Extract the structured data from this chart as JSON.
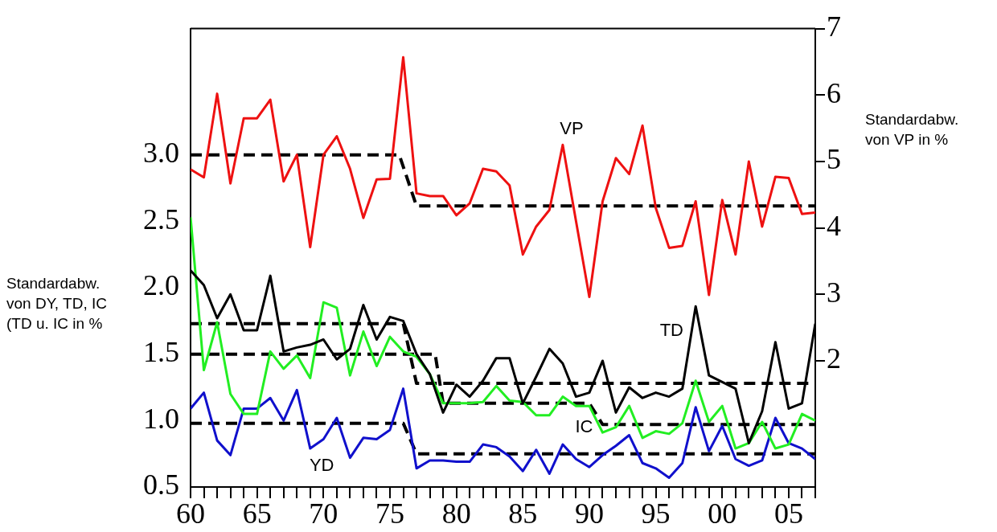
{
  "chart_data": {
    "type": "line",
    "ylabel": "Standardabw. von DY, TD, IC (TD u. IC in %",
    "y2label": "Standardabw. von VP in %",
    "x": [
      1960,
      1961,
      1962,
      1963,
      1964,
      1965,
      1966,
      1967,
      1968,
      1969,
      1970,
      1971,
      1972,
      1973,
      1974,
      1975,
      1976,
      1977,
      1978,
      1979,
      1980,
      1981,
      1982,
      1983,
      1984,
      1985,
      1986,
      1987,
      1988,
      1989,
      1990,
      1991,
      1992,
      1993,
      1994,
      1995,
      1996,
      1997,
      1998,
      1999,
      2000,
      2001,
      2002,
      2003,
      2004,
      2005,
      2006,
      2007
    ],
    "series": [
      {
        "name": "VP",
        "color": "#ee1111",
        "axis": "y2",
        "values": [
          4.88,
          4.76,
          6.02,
          4.67,
          5.65,
          5.65,
          5.93,
          4.7,
          5.1,
          3.71,
          5.1,
          5.38,
          4.89,
          4.15,
          4.73,
          4.74,
          6.57,
          4.52,
          4.48,
          4.48,
          4.19,
          4.37,
          4.89,
          4.85,
          4.64,
          3.6,
          4.02,
          4.27,
          5.25,
          4.1,
          2.96,
          4.4,
          5.05,
          4.81,
          5.54,
          4.3,
          3.7,
          3.73,
          4.4,
          2.99,
          4.42,
          3.6,
          5.0,
          4.02,
          4.77,
          4.75,
          4.21,
          4.23
        ]
      },
      {
        "name": "TD",
        "color": "#000000",
        "values": [
          2.13,
          2.02,
          1.77,
          1.95,
          1.68,
          1.68,
          2.09,
          1.52,
          1.55,
          1.57,
          1.61,
          1.46,
          1.54,
          1.87,
          1.61,
          1.78,
          1.75,
          1.5,
          1.35,
          1.06,
          1.27,
          1.18,
          1.3,
          1.47,
          1.47,
          1.13,
          1.33,
          1.54,
          1.43,
          1.18,
          1.21,
          1.45,
          1.06,
          1.25,
          1.17,
          1.21,
          1.18,
          1.24,
          1.86,
          1.34,
          1.29,
          1.24,
          0.83,
          1.07,
          1.59,
          1.09,
          1.13,
          1.73
        ]
      },
      {
        "name": "IC",
        "color": "#22ee22",
        "values": [
          2.53,
          1.38,
          1.74,
          1.2,
          1.05,
          1.05,
          1.52,
          1.39,
          1.49,
          1.32,
          1.89,
          1.85,
          1.34,
          1.67,
          1.41,
          1.63,
          1.52,
          1.48,
          1.35,
          1.13,
          1.13,
          1.13,
          1.14,
          1.26,
          1.15,
          1.14,
          1.04,
          1.04,
          1.18,
          1.11,
          1.11,
          0.91,
          0.95,
          1.11,
          0.87,
          0.92,
          0.9,
          0.98,
          1.3,
          0.99,
          1.11,
          0.79,
          0.83,
          0.99,
          0.79,
          0.82,
          1.05,
          1.0
        ]
      },
      {
        "name": "YD",
        "color": "#1010cc",
        "values": [
          1.09,
          1.21,
          0.85,
          0.74,
          1.09,
          1.09,
          1.17,
          1.0,
          1.23,
          0.79,
          0.86,
          1.02,
          0.72,
          0.87,
          0.86,
          0.93,
          1.24,
          0.64,
          0.7,
          0.7,
          0.69,
          0.69,
          0.82,
          0.8,
          0.73,
          0.62,
          0.78,
          0.6,
          0.82,
          0.71,
          0.65,
          0.74,
          0.81,
          0.89,
          0.68,
          0.64,
          0.57,
          0.68,
          1.1,
          0.77,
          0.96,
          0.71,
          0.66,
          0.7,
          1.02,
          0.83,
          0.79,
          0.71
        ]
      },
      {
        "color": "#000000",
        "axis": "y2",
        "line_style": "dashed",
        "x": [
          1960,
          1975.7,
          1977,
          2007
        ],
        "values": [
          5.1,
          5.1,
          4.33,
          4.33
        ]
      },
      {
        "color": "#000000",
        "line_style": "dashed",
        "x": [
          1960,
          1976,
          1977,
          2007
        ],
        "values": [
          1.73,
          1.73,
          1.28,
          1.28
        ]
      },
      {
        "color": "#000000",
        "line_style": "dashed",
        "x": [
          1960,
          1978.4,
          1979,
          1990,
          1991,
          2007
        ],
        "values": [
          1.5,
          1.5,
          1.13,
          1.13,
          0.97,
          0.97
        ]
      },
      {
        "color": "#000000",
        "line_style": "dashed",
        "x": [
          1960,
          1976,
          1977,
          2007
        ],
        "values": [
          0.98,
          0.98,
          0.75,
          0.75
        ]
      }
    ],
    "xlim": [
      1960,
      2007
    ],
    "xticks": [
      {
        "value": 1960,
        "label": "60"
      },
      {
        "value": 1961,
        "label": null
      },
      {
        "value": 1962,
        "label": null
      },
      {
        "value": 1963,
        "label": null
      },
      {
        "value": 1964,
        "label": null
      },
      {
        "value": 1965,
        "label": "65"
      },
      {
        "value": 1966,
        "label": null
      },
      {
        "value": 1967,
        "label": null
      },
      {
        "value": 1968,
        "label": null
      },
      {
        "value": 1969,
        "label": null
      },
      {
        "value": 1970,
        "label": "70"
      },
      {
        "value": 1971,
        "label": null
      },
      {
        "value": 1972,
        "label": null
      },
      {
        "value": 1973,
        "label": null
      },
      {
        "value": 1974,
        "label": null
      },
      {
        "value": 1975,
        "label": "75"
      },
      {
        "value": 1976,
        "label": null
      },
      {
        "value": 1977,
        "label": null
      },
      {
        "value": 1978,
        "label": null
      },
      {
        "value": 1979,
        "label": null
      },
      {
        "value": 1980,
        "label": "80"
      },
      {
        "value": 1981,
        "label": null
      },
      {
        "value": 1982,
        "label": null
      },
      {
        "value": 1983,
        "label": null
      },
      {
        "value": 1984,
        "label": null
      },
      {
        "value": 1985,
        "label": "85"
      },
      {
        "value": 1986,
        "label": null
      },
      {
        "value": 1987,
        "label": null
      },
      {
        "value": 1988,
        "label": null
      },
      {
        "value": 1989,
        "label": null
      },
      {
        "value": 1990,
        "label": "90"
      },
      {
        "value": 1991,
        "label": null
      },
      {
        "value": 1992,
        "label": null
      },
      {
        "value": 1993,
        "label": null
      },
      {
        "value": 1994,
        "label": null
      },
      {
        "value": 1995,
        "label": "95"
      },
      {
        "value": 1996,
        "label": null
      },
      {
        "value": 1997,
        "label": null
      },
      {
        "value": 1998,
        "label": null
      },
      {
        "value": 1999,
        "label": null
      },
      {
        "value": 2000,
        "label": "00"
      },
      {
        "value": 2001,
        "label": null
      },
      {
        "value": 2002,
        "label": null
      },
      {
        "value": 2003,
        "label": null
      },
      {
        "value": 2004,
        "label": null
      },
      {
        "value": 2005,
        "label": "05"
      },
      {
        "value": 2006,
        "label": null
      },
      {
        "value": 2007,
        "label": null
      }
    ],
    "ylim": [
      0.5,
      3.95
    ],
    "yticks": [
      {
        "value": 0.5,
        "label": "0.5"
      },
      {
        "value": 1,
        "label": "1.0"
      },
      {
        "value": 1.5,
        "label": "1.5"
      },
      {
        "value": 2,
        "label": "2.0"
      },
      {
        "value": 2.5,
        "label": "2.5"
      },
      {
        "value": 3,
        "label": "3.0"
      }
    ],
    "y2lim": [
      0.1,
      7
    ],
    "y2ticks": [
      2,
      3,
      4,
      5,
      6,
      7
    ],
    "legend": false,
    "marker": "none",
    "line_style": "solid"
  }
}
